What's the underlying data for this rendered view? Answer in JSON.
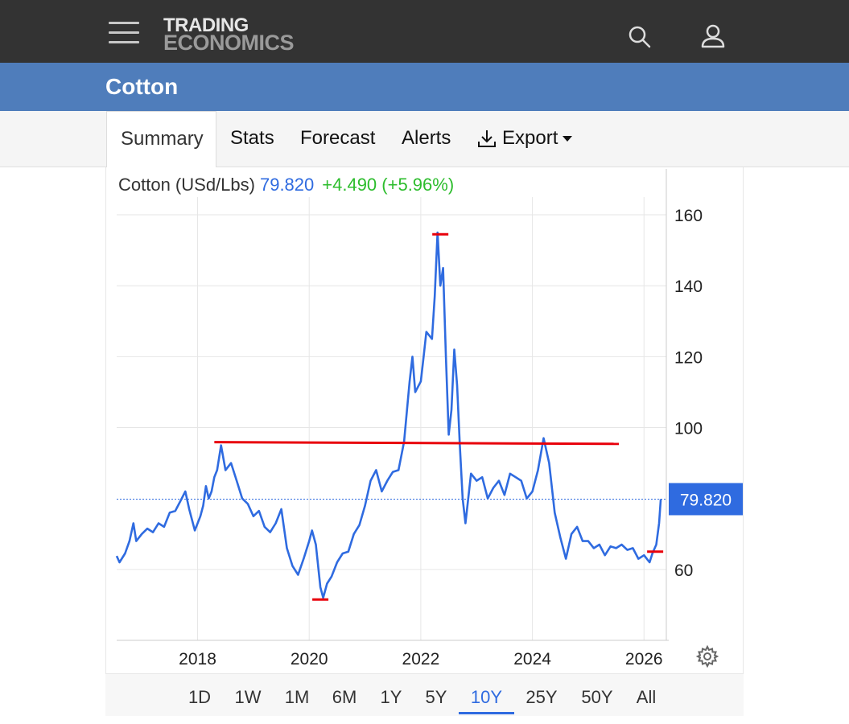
{
  "header": {
    "logo_line1": "TRADING",
    "logo_line2": "ECONOMICS",
    "icons": [
      "menu-icon",
      "search-icon",
      "user-icon"
    ]
  },
  "page": {
    "title": "Cotton"
  },
  "tabs": [
    {
      "label": "Summary",
      "active": true
    },
    {
      "label": "Stats"
    },
    {
      "label": "Forecast"
    },
    {
      "label": "Alerts"
    },
    {
      "label": "Export",
      "icon": "download-icon"
    }
  ],
  "quote": {
    "name": "Cotton (USd/Lbs)",
    "price": "79.820",
    "change": "+4.490 (+5.96%)",
    "price_tag": "79.820"
  },
  "ranges": [
    "1D",
    "1W",
    "1M",
    "6M",
    "1Y",
    "5Y",
    "10Y",
    "25Y",
    "50Y",
    "All"
  ],
  "active_range": "10Y",
  "colors": {
    "line": "#2f6be0",
    "change": "#2dbd2d",
    "marker": "#e8000b",
    "header_bg": "#333333",
    "title_bg": "#4f7dbb"
  },
  "chart_data": {
    "type": "line",
    "series": [
      {
        "values": [
          [
            2016.55,
            63.8
          ],
          [
            2016.6,
            62.0
          ],
          [
            2016.7,
            64.5
          ],
          [
            2016.78,
            68.0
          ],
          [
            2016.85,
            73.0
          ],
          [
            2016.9,
            68.0
          ],
          [
            2017.0,
            70.0
          ],
          [
            2017.1,
            71.5
          ],
          [
            2017.2,
            70.5
          ],
          [
            2017.3,
            73.0
          ],
          [
            2017.4,
            72.0
          ],
          [
            2017.5,
            76.0
          ],
          [
            2017.6,
            76.5
          ],
          [
            2017.7,
            79.5
          ],
          [
            2017.78,
            82.0
          ],
          [
            2017.85,
            77.0
          ],
          [
            2017.95,
            71.0
          ],
          [
            2018.05,
            75.0
          ],
          [
            2018.1,
            78.0
          ],
          [
            2018.15,
            83.5
          ],
          [
            2018.2,
            80.0
          ],
          [
            2018.25,
            82.0
          ],
          [
            2018.3,
            86.0
          ],
          [
            2018.35,
            88.0
          ],
          [
            2018.42,
            95.0
          ],
          [
            2018.5,
            88.0
          ],
          [
            2018.6,
            90.0
          ],
          [
            2018.7,
            85.0
          ],
          [
            2018.8,
            80.0
          ],
          [
            2018.9,
            78.5
          ],
          [
            2019.0,
            75.0
          ],
          [
            2019.1,
            76.5
          ],
          [
            2019.2,
            72.0
          ],
          [
            2019.3,
            70.5
          ],
          [
            2019.4,
            73.0
          ],
          [
            2019.5,
            77.0
          ],
          [
            2019.6,
            66.0
          ],
          [
            2019.7,
            61.0
          ],
          [
            2019.8,
            58.5
          ],
          [
            2019.9,
            63.0
          ],
          [
            2020.0,
            68.0
          ],
          [
            2020.05,
            71.0
          ],
          [
            2020.12,
            67.0
          ],
          [
            2020.2,
            55.0
          ],
          [
            2020.25,
            52.0
          ],
          [
            2020.32,
            56.0
          ],
          [
            2020.4,
            58.0
          ],
          [
            2020.5,
            62.0
          ],
          [
            2020.6,
            64.5
          ],
          [
            2020.7,
            65.0
          ],
          [
            2020.8,
            70.0
          ],
          [
            2020.9,
            72.5
          ],
          [
            2021.0,
            78.0
          ],
          [
            2021.1,
            85.0
          ],
          [
            2021.2,
            88.0
          ],
          [
            2021.3,
            82.0
          ],
          [
            2021.4,
            85.0
          ],
          [
            2021.5,
            87.5
          ],
          [
            2021.6,
            88.0
          ],
          [
            2021.7,
            96.0
          ],
          [
            2021.8,
            113.0
          ],
          [
            2021.85,
            120.0
          ],
          [
            2021.9,
            110.0
          ],
          [
            2022.0,
            113.0
          ],
          [
            2022.05,
            120.0
          ],
          [
            2022.1,
            127.0
          ],
          [
            2022.2,
            125.0
          ],
          [
            2022.25,
            137.0
          ],
          [
            2022.3,
            155.0
          ],
          [
            2022.35,
            140.0
          ],
          [
            2022.4,
            145.0
          ],
          [
            2022.45,
            120.0
          ],
          [
            2022.5,
            98.0
          ],
          [
            2022.55,
            105.0
          ],
          [
            2022.6,
            122.0
          ],
          [
            2022.65,
            112.0
          ],
          [
            2022.7,
            95.0
          ],
          [
            2022.75,
            80.0
          ],
          [
            2022.8,
            73.0
          ],
          [
            2022.9,
            87.0
          ],
          [
            2023.0,
            85.0
          ],
          [
            2023.1,
            86.0
          ],
          [
            2023.2,
            80.0
          ],
          [
            2023.3,
            83.0
          ],
          [
            2023.4,
            85.0
          ],
          [
            2023.5,
            81.0
          ],
          [
            2023.6,
            87.0
          ],
          [
            2023.7,
            86.0
          ],
          [
            2023.8,
            85.0
          ],
          [
            2023.9,
            80.0
          ],
          [
            2024.0,
            82.0
          ],
          [
            2024.1,
            88.0
          ],
          [
            2024.2,
            97.0
          ],
          [
            2024.3,
            90.0
          ],
          [
            2024.4,
            76.0
          ],
          [
            2024.5,
            69.0
          ],
          [
            2024.6,
            63.0
          ],
          [
            2024.7,
            70.0
          ],
          [
            2024.8,
            72.0
          ],
          [
            2024.9,
            68.0
          ],
          [
            2025.0,
            68.0
          ],
          [
            2025.1,
            66.0
          ],
          [
            2025.2,
            67.0
          ],
          [
            2025.3,
            64.0
          ],
          [
            2025.4,
            66.5
          ],
          [
            2025.5,
            66.0
          ],
          [
            2025.6,
            67.0
          ],
          [
            2025.7,
            65.5
          ],
          [
            2025.8,
            66.0
          ],
          [
            2025.9,
            63.0
          ],
          [
            2026.0,
            64.0
          ],
          [
            2026.05,
            63.0
          ],
          [
            2026.1,
            62.0
          ],
          [
            2026.15,
            64.5
          ],
          [
            2026.22,
            67.0
          ],
          [
            2026.27,
            73.0
          ],
          [
            2026.3,
            79.82
          ]
        ]
      }
    ],
    "xlim": [
      2016.55,
      2026.4
    ],
    "ylim": [
      40,
      165
    ],
    "x_ticks": [
      "2018",
      "2020",
      "2022",
      "2024",
      "2026"
    ],
    "y_ticks": [
      "60",
      "100",
      "120",
      "140",
      "160"
    ],
    "last_value": 79.82,
    "annotations": {
      "resistance_line": {
        "x_start": 2018.3,
        "x_end": 2025.55,
        "y_start": 95.9,
        "y_end": 95.4
      },
      "marks": [
        [
          2022.35,
          154.5
        ],
        [
          2020.2,
          51.5
        ],
        [
          2026.2,
          65.0
        ]
      ]
    },
    "grid": true
  }
}
